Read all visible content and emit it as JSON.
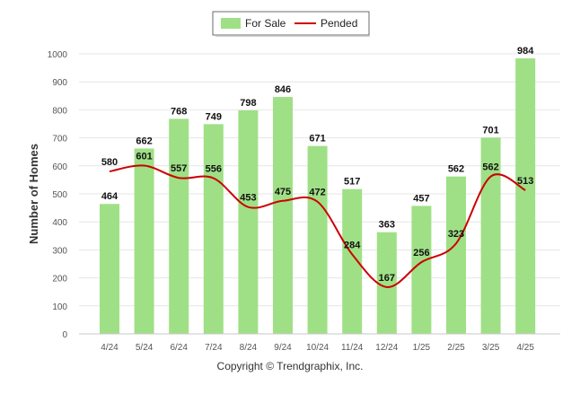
{
  "copyright": "Copyright © Trendgraphix, Inc.",
  "colors": {
    "bar": "#9fe086",
    "line": "#cc0000",
    "grid": "#e6e6e6",
    "axis_text": "#555555",
    "label_text": "#111111"
  },
  "chart_data": {
    "type": "bar",
    "categories": [
      "4/24",
      "5/24",
      "6/24",
      "7/24",
      "8/24",
      "9/24",
      "10/24",
      "11/24",
      "12/24",
      "1/25",
      "2/25",
      "3/25",
      "4/25"
    ],
    "series": [
      {
        "name": "For Sale",
        "type": "bar",
        "values": [
          464,
          662,
          768,
          749,
          798,
          846,
          671,
          517,
          363,
          457,
          562,
          701,
          984
        ]
      },
      {
        "name": "Pended",
        "type": "line",
        "values": [
          580,
          601,
          557,
          556,
          453,
          475,
          472,
          284,
          167,
          256,
          323,
          562,
          513
        ]
      }
    ],
    "ylabel": "Number of Homes",
    "ylim": [
      0,
      1000
    ],
    "yticks": [
      0,
      100,
      200,
      300,
      400,
      500,
      600,
      700,
      800,
      900,
      1000
    ],
    "grid": true,
    "legend": "top-center"
  }
}
